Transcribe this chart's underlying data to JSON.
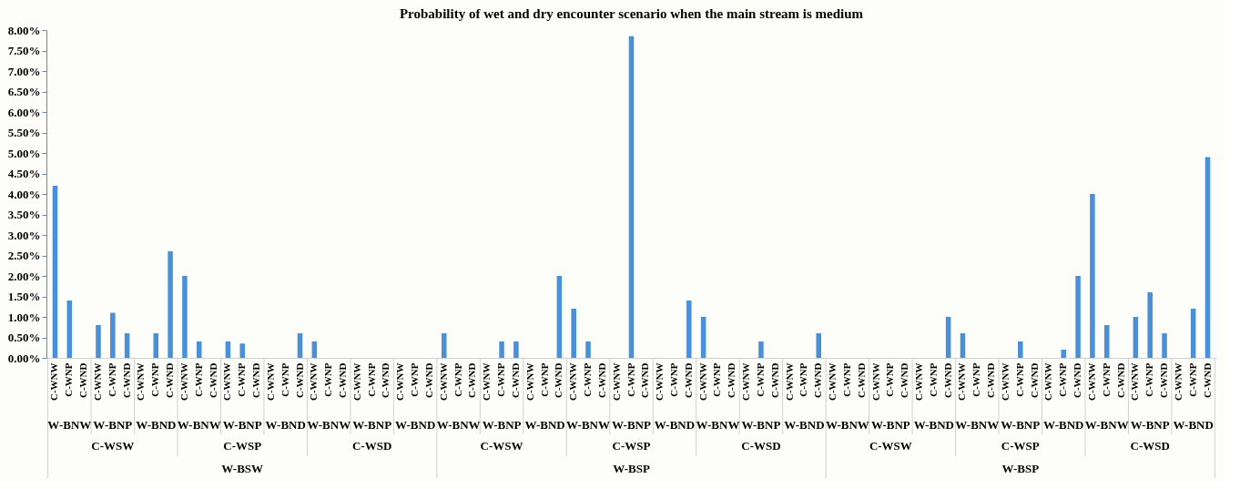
{
  "chart_data": {
    "type": "bar",
    "title": "Probability of wet and dry encounter scenario when the main stream is medium",
    "categories": [
      "C-WNW",
      "C-WNP",
      "C-WND",
      "C-WNW",
      "C-WNP",
      "C-WND",
      "C-WNW",
      "C-WNP",
      "C-WND",
      "C-WNW",
      "C-WNP",
      "C-WND",
      "C-WNW",
      "C-WNP",
      "C-WND",
      "C-WNW",
      "C-WNP",
      "C-WND",
      "C-WNW",
      "C-WNP",
      "C-WND",
      "C-WNW",
      "C-WNP",
      "C-WND",
      "C-WNW",
      "C-WNP",
      "C-WND",
      "C-WNW",
      "C-WNP",
      "C-WND",
      "C-WNW",
      "C-WNP",
      "C-WND",
      "C-WNW",
      "C-WNP",
      "C-WND",
      "C-WNW",
      "C-WNP",
      "C-WND",
      "C-WNW",
      "C-WNP",
      "C-WND",
      "C-WNW",
      "C-WNP",
      "C-WND",
      "C-WNW",
      "C-WNP",
      "C-WND",
      "C-WNW",
      "C-WNP",
      "C-WND",
      "C-WNW",
      "C-WNP",
      "C-WND",
      "C-WNW",
      "C-WNP",
      "C-WND",
      "C-WNW",
      "C-WNP",
      "C-WND",
      "C-WNW",
      "C-WNP",
      "C-WND",
      "C-WNW",
      "C-WNP",
      "C-WND",
      "C-WNW",
      "C-WNP",
      "C-WND",
      "C-WNW",
      "C-WNP",
      "C-WND",
      "C-WNW",
      "C-WNP",
      "C-WND",
      "C-WNW",
      "C-WNP",
      "C-WND",
      "C-WNW",
      "C-WNP",
      "C-WND"
    ],
    "values": [
      4.2,
      1.4,
      0,
      0.8,
      1.1,
      0.6,
      0,
      0.6,
      2.6,
      2.0,
      0.4,
      0,
      0.4,
      0.35,
      0,
      0,
      0,
      0.6,
      0.4,
      0,
      0,
      0,
      0,
      0,
      0,
      0,
      0,
      0.6,
      0,
      0,
      0,
      0.4,
      0.4,
      0,
      0,
      2.0,
      1.2,
      0.4,
      0,
      0,
      7.85,
      0,
      0,
      0,
      1.4,
      1.0,
      0,
      0,
      0,
      0.4,
      0,
      0,
      0,
      0.6,
      0,
      0,
      0,
      0,
      0,
      0,
      0,
      0,
      1.0,
      0.6,
      0,
      0,
      0,
      0.4,
      0,
      0,
      0.2,
      2.0,
      4.0,
      0.8,
      0,
      1.0,
      1.6,
      0.6,
      0,
      1.2,
      4.9
    ],
    "color": "#4a90d9",
    "ylim": [
      0,
      8
    ],
    "yticks": [
      {
        "value": 0,
        "label": "0.00%"
      },
      {
        "value": 0.5,
        "label": "0.50%"
      },
      {
        "value": 1,
        "label": "1.00%"
      },
      {
        "value": 1.5,
        "label": "1.50%"
      },
      {
        "value": 2,
        "label": "2.00%"
      },
      {
        "value": 2.5,
        "label": "2.50%"
      },
      {
        "value": 3,
        "label": "3.00%"
      },
      {
        "value": 3.5,
        "label": "3.50%"
      },
      {
        "value": 4,
        "label": "4.00%"
      },
      {
        "value": 4.5,
        "label": "4.50%"
      },
      {
        "value": 5,
        "label": "5.00%"
      },
      {
        "value": 5.5,
        "label": "5.50%"
      },
      {
        "value": 6,
        "label": "6.00%"
      },
      {
        "value": 6.5,
        "label": "6.50%"
      },
      {
        "value": 7,
        "label": "7.00%"
      },
      {
        "value": 7.5,
        "label": "7.50%"
      },
      {
        "value": 8,
        "label": "8.00%"
      }
    ],
    "grid": false,
    "annotations": [
      "W-BNW",
      "W-BNP",
      "W-BND",
      "W-BNW",
      "W-BNP",
      "W-BND",
      "W-BNW",
      "W-BNP",
      "W-BND",
      "W-BNW",
      "W-BNP",
      "W-BND",
      "W-BNW",
      "W-BNP",
      "W-BND",
      "W-BNW",
      "W-BNP",
      "W-BND",
      "W-BNW",
      "W-BNP",
      "W-BND",
      "W-BNW",
      "W-BNP",
      "W-BND",
      "W-BNW",
      "W-BNP",
      "W-BND",
      "C-WSW",
      "C-WSP",
      "C-WSD",
      "C-WSW",
      "C-WSP",
      "C-WSD",
      "C-WSW",
      "C-WSP",
      "C-WSD",
      "W-BSW",
      "W-BSP",
      "W-BSP"
    ]
  }
}
